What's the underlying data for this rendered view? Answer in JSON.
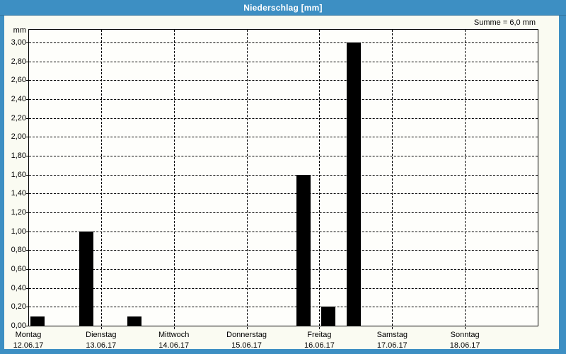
{
  "window": {
    "title": "Niederschlag [mm]"
  },
  "header": {
    "summary_label": "Summe = 6,0 mm"
  },
  "chart_data": {
    "type": "bar",
    "title": "Niederschlag [mm]",
    "unit_label": "mm",
    "sum_label": "Summe = 6,0 mm",
    "sum_value_mm": 6.0,
    "ylim": [
      0,
      3.15
    ],
    "ytick_step": 0.2,
    "grid": true,
    "bar_color": "black",
    "yticks": [
      {
        "value": 0.0,
        "label": "0,00"
      },
      {
        "value": 0.2,
        "label": "0,20"
      },
      {
        "value": 0.4,
        "label": "0,40"
      },
      {
        "value": 0.6,
        "label": "0,60"
      },
      {
        "value": 0.8,
        "label": "0,80"
      },
      {
        "value": 1.0,
        "label": "1,00"
      },
      {
        "value": 1.2,
        "label": "1,20"
      },
      {
        "value": 1.4,
        "label": "1,40"
      },
      {
        "value": 1.6,
        "label": "1,60"
      },
      {
        "value": 1.8,
        "label": "1,80"
      },
      {
        "value": 2.0,
        "label": "2,00"
      },
      {
        "value": 2.2,
        "label": "2,20"
      },
      {
        "value": 2.4,
        "label": "2,40"
      },
      {
        "value": 2.6,
        "label": "2,60"
      },
      {
        "value": 2.8,
        "label": "2,80"
      },
      {
        "value": 3.0,
        "label": "3,00"
      }
    ],
    "x_axis_days": [
      {
        "name": "Montag",
        "date": "12.06.17"
      },
      {
        "name": "Dienstag",
        "date": "13.06.17"
      },
      {
        "name": "Mittwoch",
        "date": "14.06.17"
      },
      {
        "name": "Donnerstag",
        "date": "15.06.17"
      },
      {
        "name": "Freitag",
        "date": "16.06.17"
      },
      {
        "name": "Samstag",
        "date": "17.06.17"
      },
      {
        "name": "Sonntag",
        "date": "18.06.17"
      }
    ],
    "bars_mm": [
      {
        "day_offset": 0.13,
        "value": 0.1
      },
      {
        "day_offset": 0.795,
        "value": 1.0
      },
      {
        "day_offset": 1.46,
        "value": 0.1
      },
      {
        "day_offset": 3.785,
        "value": 1.6
      },
      {
        "day_offset": 4.125,
        "value": 0.2
      },
      {
        "day_offset": 4.47,
        "value": 3.0
      }
    ]
  },
  "colors": {
    "titlebar_bg": "#3d8fc3",
    "frame": "#3d8fc3",
    "title_text": "#ffffff",
    "content_bg": "#fafbf2",
    "plot_bg": "#fefefb",
    "bar": "#000000",
    "grid_line": "#000000",
    "axis_text": "#000000"
  }
}
